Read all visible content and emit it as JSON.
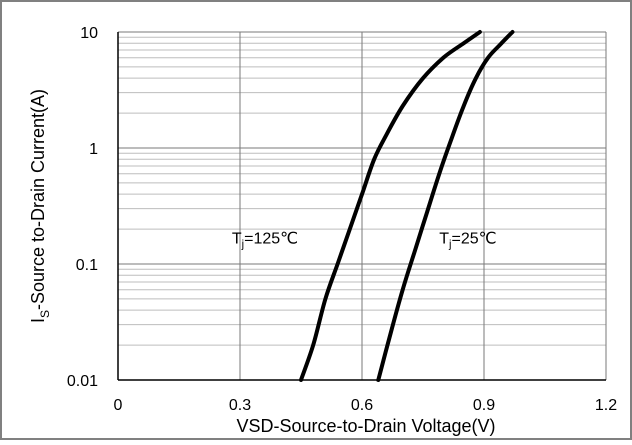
{
  "chart_data": {
    "type": "line",
    "xlabel": "VSD-Source-to-Drain Voltage(V)",
    "ylabel": {
      "main": "I",
      "sub": "S",
      "rest": "-Source  to-Drain Current(A)"
    },
    "xlim": [
      0,
      1.2
    ],
    "ylim": [
      0.01,
      10
    ],
    "yscale": "log",
    "grid": true,
    "x_ticks": [
      {
        "v": 0,
        "label": "0"
      },
      {
        "v": 0.3,
        "label": "0.3"
      },
      {
        "v": 0.6,
        "label": "0.6"
      },
      {
        "v": 0.9,
        "label": "0.9"
      },
      {
        "v": 1.2,
        "label": "1.2"
      }
    ],
    "y_ticks": [
      {
        "v": 0.01,
        "label": "0.01"
      },
      {
        "v": 0.1,
        "label": "0.1"
      },
      {
        "v": 1,
        "label": "1"
      },
      {
        "v": 10,
        "label": "10"
      }
    ],
    "series": [
      {
        "label": {
          "main": "T",
          "sub": "j",
          "rest": "=125℃"
        },
        "label_at": {
          "x": 0.28,
          "y": 0.15
        },
        "points": [
          [
            0.45,
            0.01
          ],
          [
            0.48,
            0.02
          ],
          [
            0.51,
            0.05
          ],
          [
            0.54,
            0.1
          ],
          [
            0.57,
            0.2
          ],
          [
            0.6,
            0.4
          ],
          [
            0.63,
            0.8
          ],
          [
            0.66,
            1.3
          ],
          [
            0.7,
            2.3
          ],
          [
            0.75,
            4.0
          ],
          [
            0.8,
            6.0
          ],
          [
            0.85,
            8.0
          ],
          [
            0.89,
            10
          ]
        ]
      },
      {
        "label": {
          "main": "T",
          "sub": "j",
          "rest": "=25℃"
        },
        "label_at": {
          "x": 0.79,
          "y": 0.15
        },
        "points": [
          [
            0.64,
            0.01
          ],
          [
            0.67,
            0.025
          ],
          [
            0.7,
            0.06
          ],
          [
            0.73,
            0.13
          ],
          [
            0.76,
            0.28
          ],
          [
            0.79,
            0.6
          ],
          [
            0.82,
            1.2
          ],
          [
            0.85,
            2.3
          ],
          [
            0.88,
            4.0
          ],
          [
            0.91,
            6.0
          ],
          [
            0.94,
            7.8
          ],
          [
            0.97,
            10
          ]
        ]
      }
    ]
  }
}
